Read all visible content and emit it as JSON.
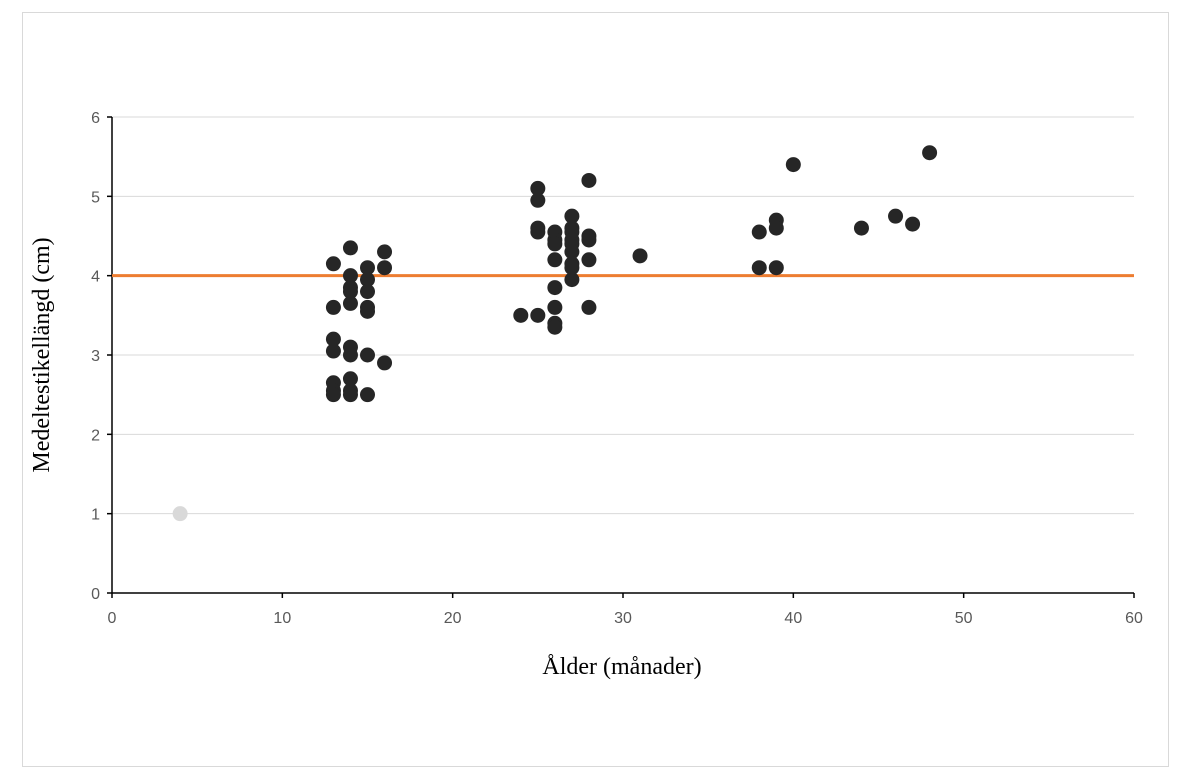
{
  "chart_data": {
    "type": "scatter",
    "title": "",
    "xlabel": "Ålder (månader)",
    "ylabel": "Medeltestikellängd (cm)",
    "xlim": [
      0,
      60
    ],
    "ylim": [
      0,
      6
    ],
    "xticks": [
      0,
      10,
      20,
      30,
      40,
      50,
      60
    ],
    "yticks": [
      0,
      1,
      2,
      3,
      4,
      5,
      6
    ],
    "grid": "horizontal",
    "legend": "none",
    "reference_line": {
      "y": 4.0,
      "color": "#ED7D31"
    },
    "series": [
      {
        "color": "#262626",
        "points": [
          [
            13,
            4.15
          ],
          [
            13,
            3.6
          ],
          [
            13,
            3.2
          ],
          [
            13,
            3.05
          ],
          [
            13,
            2.65
          ],
          [
            13,
            2.55
          ],
          [
            13,
            2.5
          ],
          [
            14,
            4.35
          ],
          [
            14,
            4.0
          ],
          [
            14,
            3.85
          ],
          [
            14,
            3.8
          ],
          [
            14,
            3.65
          ],
          [
            14,
            3.1
          ],
          [
            14,
            3.0
          ],
          [
            14,
            2.7
          ],
          [
            14,
            2.55
          ],
          [
            14,
            2.5
          ],
          [
            15,
            4.1
          ],
          [
            15,
            3.95
          ],
          [
            15,
            3.8
          ],
          [
            15,
            3.6
          ],
          [
            15,
            3.55
          ],
          [
            15,
            3.0
          ],
          [
            15,
            2.5
          ],
          [
            16,
            4.3
          ],
          [
            16,
            4.1
          ],
          [
            16,
            2.9
          ],
          [
            24,
            3.5
          ],
          [
            25,
            5.1
          ],
          [
            25,
            4.95
          ],
          [
            25,
            4.6
          ],
          [
            25,
            4.55
          ],
          [
            25,
            3.5
          ],
          [
            26,
            4.55
          ],
          [
            26,
            4.45
          ],
          [
            26,
            4.4
          ],
          [
            26,
            4.2
          ],
          [
            26,
            3.85
          ],
          [
            26,
            3.6
          ],
          [
            26,
            3.4
          ],
          [
            26,
            3.35
          ],
          [
            27,
            4.75
          ],
          [
            27,
            4.6
          ],
          [
            27,
            4.55
          ],
          [
            27,
            4.45
          ],
          [
            27,
            4.4
          ],
          [
            27,
            4.3
          ],
          [
            27,
            4.15
          ],
          [
            27,
            4.1
          ],
          [
            27,
            3.95
          ],
          [
            28,
            5.2
          ],
          [
            28,
            4.5
          ],
          [
            28,
            4.45
          ],
          [
            28,
            4.2
          ],
          [
            28,
            3.6
          ],
          [
            31,
            4.25
          ],
          [
            38,
            4.55
          ],
          [
            38,
            4.1
          ],
          [
            39,
            4.7
          ],
          [
            39,
            4.6
          ],
          [
            39,
            4.1
          ],
          [
            40,
            5.4
          ],
          [
            44,
            4.6
          ],
          [
            46,
            4.75
          ],
          [
            47,
            4.65
          ],
          [
            48,
            5.55
          ]
        ]
      },
      {
        "color": "#D9D9D9",
        "points": [
          [
            4,
            1.0
          ]
        ]
      }
    ]
  }
}
